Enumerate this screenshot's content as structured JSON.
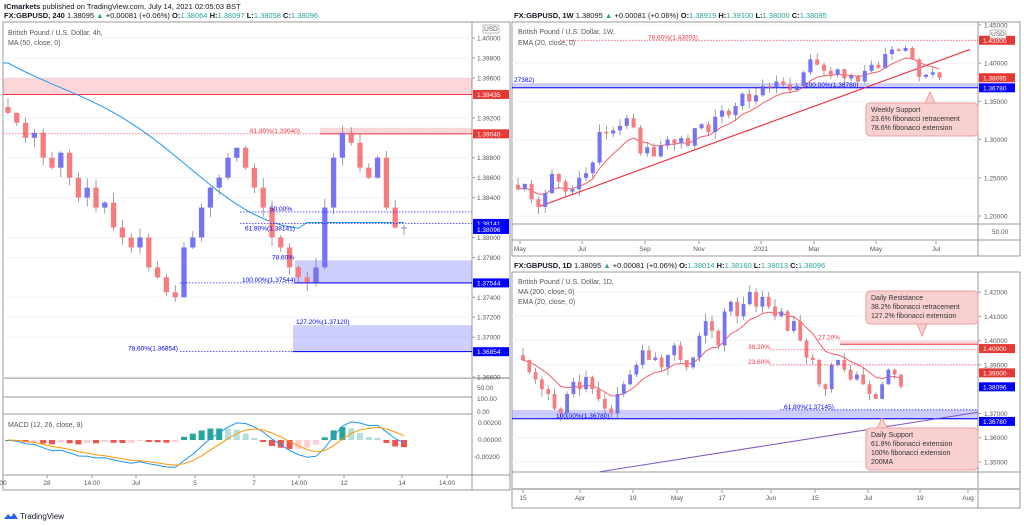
{
  "publisher": {
    "name": "ICmarkets",
    "text": "published on TradingView.com, July 14, 2021 02:05:03 BST"
  },
  "colors": {
    "up": "#7474f4",
    "down": "#f77c80",
    "resistance": "#f23645",
    "support": "#0000ff",
    "ma50": "#2196f3",
    "ema20": "#f23645",
    "ma200": "#7e57c2",
    "macd": "#2196f3",
    "signal": "#ff9800",
    "hist_up": "#26a69a",
    "hist_down": "#ef5350"
  },
  "left": {
    "symbol": "FX:GBPUSD, 240",
    "last": "1.38095",
    "change": "+0.00081 (+0.06%)",
    "o": "1.38064",
    "h": "1.38097",
    "l": "1.38058",
    "c": "1.38096",
    "title": "British Pound / U.S. Dollar, 4h,",
    "indicator": "MA (50, close, 0)",
    "currency": "USD",
    "ticks": [
      "1.40000",
      "1.39800",
      "1.39600",
      "1.39200",
      "1.38800",
      "1.38600",
      "1.38400",
      "1.38000",
      "1.37800",
      "1.37400",
      "1.37200",
      "1.37000",
      "1.36600"
    ],
    "pane1_tick": "50.00",
    "pane2_ticks": [
      "100.00",
      "0.00"
    ],
    "macd_label": "MACD (12, 26, close, 9)",
    "macd_ticks": [
      "0.00200",
      "0.00000",
      "-0.00200"
    ],
    "time_ticks": [
      "00",
      "28",
      "14:00",
      "Jul",
      "5",
      "7",
      "14:00",
      "12",
      "14",
      "14:00"
    ],
    "price_tags": [
      {
        "price": "1.39435",
        "kind": "resistance"
      },
      {
        "price": "1.39040",
        "kind": "resistance"
      },
      {
        "price": "1.38141",
        "kind": "support"
      },
      {
        "price": "1.38096",
        "kind": "support"
      },
      {
        "price": "1.37544",
        "kind": "support"
      },
      {
        "price": "1.36854",
        "kind": "support"
      }
    ],
    "fib_labels": [
      {
        "text": "61.80%(1.39040)",
        "price": 1.3904,
        "kind": "resistance"
      },
      {
        "text": "50.00%",
        "price": 1.38256,
        "kind": "support"
      },
      {
        "text": "61.80%(1.38141)",
        "price": 1.38141,
        "kind": "support"
      },
      {
        "text": "78.60%",
        "price": 1.3777,
        "kind": "support"
      },
      {
        "text": "100.00%(1.37544)",
        "price": 1.37544,
        "kind": "support"
      },
      {
        "text": "127.20%(1.37120)",
        "price": 1.3712,
        "kind": "support"
      },
      {
        "text": "78.60%(1.36854)",
        "price": 1.36854,
        "kind": "support"
      }
    ],
    "zones": [
      {
        "top": 1.396,
        "bottom": 1.39435,
        "kind": "resistance"
      },
      {
        "top": 1.391,
        "bottom": 1.3904,
        "kind": "resistance"
      },
      {
        "top": 1.3777,
        "bottom": 1.37544,
        "kind": "support"
      },
      {
        "top": 1.3712,
        "bottom": 1.36854,
        "kind": "support"
      }
    ]
  },
  "weekly": {
    "symbol": "FX:GBPUSD, 1W",
    "last": "1.38095",
    "change": "+0.00081 (+0.06%)",
    "o": "1.38919",
    "h": "1.39100",
    "l": "1.38000",
    "c": "1.38095",
    "title": "British Pound / U.S. Dollar, 1W,",
    "indicator": "EMA (20, close, 0)",
    "currency": "USD",
    "ticks": [
      "1.45000",
      "1.40000",
      "1.35000",
      "1.30000",
      "1.25000",
      "1.20000"
    ],
    "pane1_tick": "50.00",
    "time_ticks": [
      "May",
      "Jul",
      "Sep",
      "Nov",
      "2021",
      "Mar",
      "May",
      "Jul"
    ],
    "price_tags": [
      {
        "price": "1.43000",
        "kind": "resistance"
      },
      {
        "price": "1.38095",
        "kind": "resistance"
      },
      {
        "price": "1.36780",
        "kind": "support"
      }
    ],
    "fib_labels": [
      {
        "text": "78.60%(1.43003)",
        "price": 1.43003,
        "kind": "resistance"
      },
      {
        "text": "27382)",
        "price": 1.3738,
        "kind": "support"
      },
      {
        "text": "100.00%(1.36780)",
        "price": 1.3678,
        "kind": "support"
      }
    ],
    "zones": [
      {
        "top": 1.3738,
        "bottom": 1.3678,
        "kind": "support"
      }
    ],
    "callout": [
      "Weekly Support",
      "23.6% fibonacci retracement",
      "78.6% fibonacci extension"
    ]
  },
  "daily": {
    "symbol": "FX:GBPUSD, 1D",
    "last": "1.38095",
    "change": "+0.00081 (+0.06%)",
    "o": "1.38014",
    "h": "1.38160",
    "l": "1.38013",
    "c": "1.38096",
    "title": "British Pound / U.S. Dollar, 1D,",
    "indicators": [
      "MA (200, close, 0)",
      "EMA (20, close, 0)"
    ],
    "ticks": [
      "1.42000",
      "1.41000",
      "1.40000",
      "1.39000",
      "1.37000",
      "1.36000",
      "1.35000"
    ],
    "time_ticks": [
      "15",
      "Apr",
      "19",
      "May",
      "17",
      "Jun",
      "15",
      "Jul",
      "19",
      "Aug"
    ],
    "price_tags": [
      {
        "price": "1.40000",
        "kind": "resistance"
      },
      {
        "price": "1.39000",
        "kind": "resistance"
      },
      {
        "price": "1.38096",
        "kind": "support"
      },
      {
        "price": "1.36780",
        "kind": "support"
      }
    ],
    "fib_labels": [
      {
        "text": "27.20%",
        "price": 1.4,
        "kind": "resistance"
      },
      {
        "text": "38.20%",
        "price": 1.3962,
        "kind": "resistance"
      },
      {
        "text": "23.60%",
        "price": 1.39,
        "kind": "resistance"
      },
      {
        "text": "61.80%(1.37145)",
        "price": 1.37145,
        "kind": "support"
      },
      {
        "text": "100.00%(1.36780)",
        "price": 1.3678,
        "kind": "support"
      }
    ],
    "zones": [
      {
        "top": 1.4,
        "bottom": 1.3985,
        "kind": "resistance"
      },
      {
        "top": 1.37145,
        "bottom": 1.3678,
        "kind": "support"
      }
    ],
    "callout_resistance": [
      "Daily Resistance",
      "38.2% fibonacci retracement",
      "127.2% fibonacci extension"
    ],
    "callout_support": [
      "Daily Support",
      "61.8% fibonacci extension",
      "100% fibonacci extension",
      "200MA"
    ]
  },
  "chart_data": [
    {
      "type": "candlestick",
      "title": "British Pound / U.S. Dollar, 4h",
      "ylim": [
        1.366,
        1.4
      ],
      "closes": [
        1.3925,
        1.3915,
        1.39,
        1.3905,
        1.388,
        1.387,
        1.3885,
        1.386,
        1.384,
        1.385,
        1.383,
        1.3835,
        1.381,
        1.38,
        1.379,
        1.38,
        1.377,
        1.376,
        1.3745,
        1.374,
        1.379,
        1.38,
        1.383,
        1.385,
        1.386,
        1.388,
        1.389,
        1.387,
        1.385,
        1.383,
        1.38,
        1.379,
        1.377,
        1.376,
        1.3755,
        1.377,
        1.383,
        1.388,
        1.3905,
        1.3895,
        1.387,
        1.386,
        1.388,
        1.383,
        1.381,
        1.381
      ],
      "ma50_start": 1.3975,
      "ma50_end": 1.3815
    },
    {
      "type": "candlestick",
      "title": "British Pound / U.S. Dollar, 1W",
      "ylim": [
        1.2,
        1.45
      ],
      "closes": [
        1.235,
        1.242,
        1.222,
        1.212,
        1.23,
        1.255,
        1.245,
        1.232,
        1.235,
        1.25,
        1.256,
        1.27,
        1.31,
        1.308,
        1.312,
        1.318,
        1.328,
        1.316,
        1.282,
        1.29,
        1.278,
        1.292,
        1.3,
        1.295,
        1.302,
        1.292,
        1.315,
        1.32,
        1.31,
        1.33,
        1.338,
        1.332,
        1.344,
        1.36,
        1.35,
        1.358,
        1.37,
        1.368,
        1.376,
        1.372,
        1.365,
        1.37,
        1.388,
        1.405,
        1.398,
        1.39,
        1.385,
        1.392,
        1.38,
        1.384,
        1.376,
        1.39,
        1.398,
        1.394,
        1.412,
        1.418,
        1.416,
        1.42,
        1.405,
        1.382,
        1.385,
        1.388,
        1.381
      ],
      "trendline": [
        1.212,
        1.418
      ]
    },
    {
      "type": "candlestick",
      "title": "British Pound / U.S. Dollar, 1D",
      "ylim": [
        1.35,
        1.42
      ],
      "closes": [
        1.392,
        1.387,
        1.384,
        1.38,
        1.378,
        1.372,
        1.37,
        1.378,
        1.383,
        1.38,
        1.385,
        1.38,
        1.376,
        1.372,
        1.37,
        1.378,
        1.382,
        1.386,
        1.39,
        1.396,
        1.392,
        1.393,
        1.389,
        1.394,
        1.398,
        1.392,
        1.389,
        1.393,
        1.402,
        1.408,
        1.404,
        1.398,
        1.412,
        1.416,
        1.41,
        1.415,
        1.42,
        1.414,
        1.418,
        1.414,
        1.41,
        1.412,
        1.404,
        1.408,
        1.4,
        1.393,
        1.392,
        1.382,
        1.38,
        1.39,
        1.392,
        1.388,
        1.384,
        1.386,
        1.382,
        1.378,
        1.376,
        1.382,
        1.388,
        1.386,
        1.381
      ],
      "ma200": [
        1.346,
        1.3705
      ]
    }
  ],
  "footer": {
    "logo_text": "TradingView"
  }
}
